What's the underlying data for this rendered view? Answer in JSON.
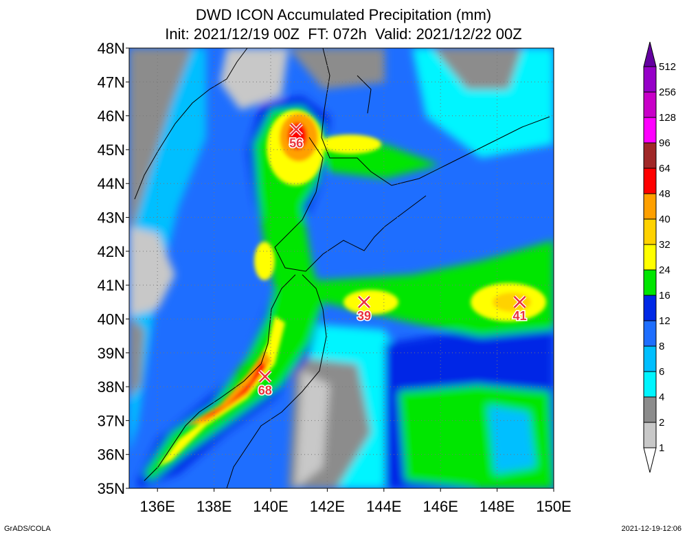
{
  "title": "DWD ICON Accumulated Precipitation (mm)",
  "subtitle": "Init: 2021/12/19 00Z  FT: 072h  Valid: 2021/12/22 00Z",
  "footer_left": "GrADS/COLA",
  "footer_right": "2021-12-19-12:06",
  "chart_data": {
    "type": "heatmap",
    "title": "DWD ICON Accumulated Precipitation (mm)",
    "subtitle": "Init: 2021/12/19 00Z  FT: 072h  Valid: 2021/12/22 00Z",
    "xlim": [
      135,
      150
    ],
    "ylim": [
      35,
      48
    ],
    "x_ticks": [
      136,
      138,
      140,
      142,
      144,
      146,
      148,
      150
    ],
    "x_tick_labels": [
      "136E",
      "138E",
      "140E",
      "142E",
      "144E",
      "146E",
      "148E",
      "150E"
    ],
    "y_ticks": [
      35,
      36,
      37,
      38,
      39,
      40,
      41,
      42,
      43,
      44,
      45,
      46,
      47,
      48
    ],
    "y_tick_labels": [
      "35N",
      "36N",
      "37N",
      "38N",
      "39N",
      "40N",
      "41N",
      "42N",
      "43N",
      "44N",
      "45N",
      "46N",
      "47N",
      "48N"
    ],
    "grid": true,
    "colorbar": {
      "position": "right",
      "levels": [
        1,
        2,
        4,
        6,
        8,
        12,
        16,
        24,
        32,
        40,
        48,
        64,
        96,
        128,
        256,
        512
      ],
      "colors": [
        "#ffffff",
        "#c8c8c8",
        "#8c8c8c",
        "#00f5ff",
        "#00bfff",
        "#1e6eff",
        "#0028e6",
        "#00e600",
        "#ffff00",
        "#ffd200",
        "#ffa000",
        "#ff0000",
        "#a02828",
        "#ff00ff",
        "#c800c8",
        "#9600c8",
        "#6400a0"
      ]
    },
    "maxima": [
      {
        "lon": 140.9,
        "lat": 45.6,
        "value": 56
      },
      {
        "lon": 143.3,
        "lat": 40.5,
        "value": 39
      },
      {
        "lon": 148.8,
        "lat": 40.5,
        "value": 41
      },
      {
        "lon": 139.8,
        "lat": 38.3,
        "value": 68
      }
    ]
  }
}
